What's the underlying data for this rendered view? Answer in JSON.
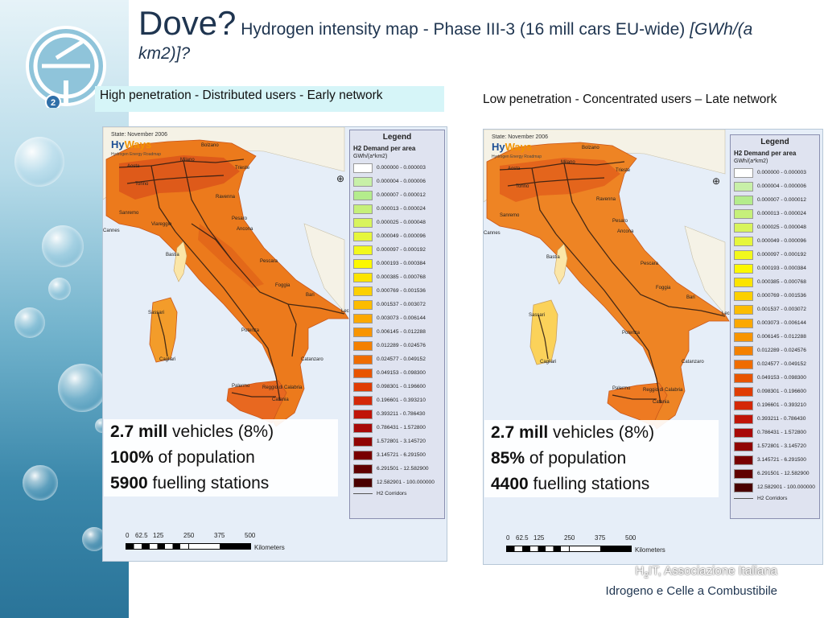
{
  "title": {
    "main": "Dove?",
    "sub": "Hydrogen intensity map - Phase III-3 (16 mill cars EU-wide)",
    "unit": "[GWh/(a km2)]?"
  },
  "panels": [
    {
      "caption": "High penetration - Distributed users - Early network",
      "state": "State: November 2006",
      "brand_hy": "Hy",
      "brand_ways": "Ways",
      "brand_sub": "Hydrogen Energy Roadmap",
      "stats": {
        "vehicles_bold": "2.7 mill",
        "vehicles_rest": " vehicles (8%)",
        "population_bold": "100%",
        "population_rest": " of population",
        "stations_bold": "5900",
        "stations_rest": " fuelling stations"
      }
    },
    {
      "caption": "Low penetration - Concentrated users – Late network",
      "state": "State: November 2006",
      "brand_hy": "Hy",
      "brand_ways": "Ways",
      "brand_sub": "Hydrogen Energy Roadmap",
      "stats": {
        "vehicles_bold": "2.7 mill",
        "vehicles_rest": " vehicles (8%)",
        "population_bold": "85%",
        "population_rest": " of population",
        "stations_bold": "4400",
        "stations_rest": " fuelling stations"
      }
    }
  ],
  "legend": {
    "title": "Legend",
    "heading": "H2 Demand per area",
    "unit": "GWh/(a*km2)",
    "corridors": "H2 Corridors",
    "items": [
      {
        "range": "0.000000 - 0.000003",
        "color": "#ffffff"
      },
      {
        "range": "0.000004 - 0.000006",
        "color": "#c8f0a8"
      },
      {
        "range": "0.000007 - 0.000012",
        "color": "#b4ec8c"
      },
      {
        "range": "0.000013 - 0.000024",
        "color": "#c6f07a"
      },
      {
        "range": "0.000025 - 0.000048",
        "color": "#d8f45c"
      },
      {
        "range": "0.000049 - 0.000096",
        "color": "#e6f63c"
      },
      {
        "range": "0.000097 - 0.000192",
        "color": "#f2f81c"
      },
      {
        "range": "0.000193 - 0.000384",
        "color": "#fcf800"
      },
      {
        "range": "0.000385 - 0.000768",
        "color": "#fce400"
      },
      {
        "range": "0.000769 - 0.001536",
        "color": "#fcd000"
      },
      {
        "range": "0.001537 - 0.003072",
        "color": "#fcbc00"
      },
      {
        "range": "0.003073 - 0.006144",
        "color": "#fca800"
      },
      {
        "range": "0.006145 - 0.012288",
        "color": "#f89400"
      },
      {
        "range": "0.012289 - 0.024576",
        "color": "#f48000"
      },
      {
        "range": "0.024577 - 0.049152",
        "color": "#ef6c00"
      },
      {
        "range": "0.049153 - 0.098300",
        "color": "#e85400"
      },
      {
        "range": "0.098301 - 0.196600",
        "color": "#e03c04"
      },
      {
        "range": "0.196601 - 0.393210",
        "color": "#d42808"
      },
      {
        "range": "0.393211 - 0.786430",
        "color": "#c01408"
      },
      {
        "range": "0.786431 - 1.572800",
        "color": "#a80808"
      },
      {
        "range": "1.572801 - 3.145720",
        "color": "#900404"
      },
      {
        "range": "3.145721 - 6.291500",
        "color": "#780000"
      },
      {
        "range": "6.291501 - 12.582900",
        "color": "#600000"
      },
      {
        "range": "12.582901 - 100.000000",
        "color": "#4a0000"
      }
    ]
  },
  "scale": {
    "ticks": [
      "0",
      "62.5",
      "125",
      "250",
      "375",
      "500"
    ],
    "unit": "Kilometers"
  },
  "credit": {
    "line1_a": "H",
    "line1_sub": "2",
    "line1_b": "IT, Associazione Italiana",
    "line2": "Idrogeno e Celle a Combustibile"
  }
}
